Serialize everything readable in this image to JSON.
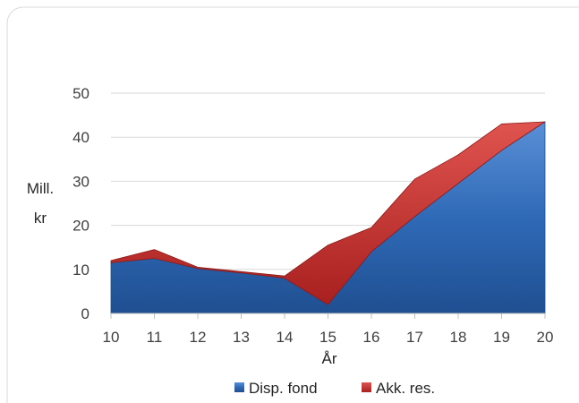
{
  "chart_data": {
    "type": "area",
    "stacked": true,
    "x": [
      10,
      11,
      12,
      13,
      14,
      15,
      16,
      17,
      18,
      19,
      20
    ],
    "series": [
      {
        "name": "Disp. fond",
        "color": "#2f6ab7",
        "values": [
          11.5,
          12.5,
          10.2,
          9.2,
          8.0,
          2.0,
          14.0,
          22.0,
          29.5,
          37.0,
          43.5
        ]
      },
      {
        "name": "Akk. res.",
        "color": "#c0292c",
        "values": [
          0.5,
          2.0,
          0.3,
          0.3,
          0.5,
          13.5,
          5.5,
          8.5,
          6.5,
          6.0,
          0.0
        ]
      }
    ],
    "y_ticks": [
      0,
      10,
      20,
      30,
      40,
      50
    ],
    "ylim": [
      0,
      50
    ],
    "xlabel": "År",
    "ylabel": "Mill. kr",
    "ylabel_lines": [
      "Mill.",
      "kr"
    ],
    "grid": true,
    "legend": "bottom"
  }
}
